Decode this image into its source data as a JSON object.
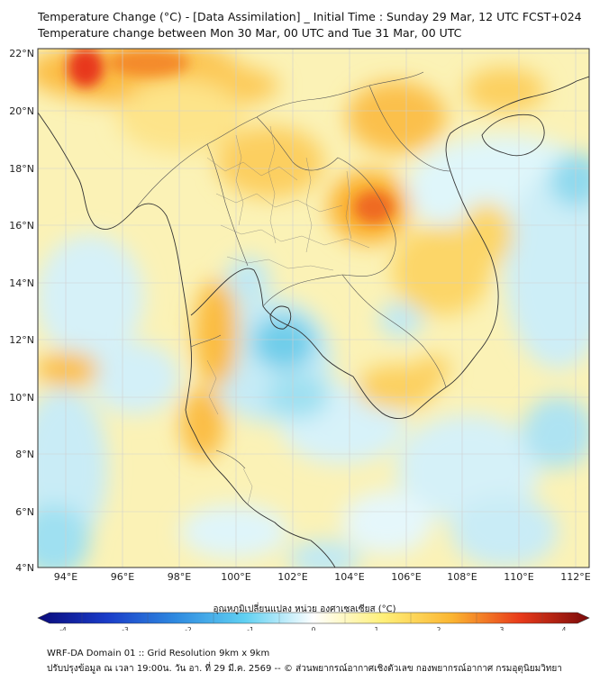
{
  "header": {
    "title_line1": "Temperature Change (°C) - [Data Assimilation] _ Initial Time : Sunday 29 Mar, 12 UTC FCST+024",
    "title_line2": "Temperature change between Mon 30 Mar, 00 UTC and Tue 31 Mar, 00 UTC"
  },
  "map": {
    "lon_range": [
      93,
      112.5
    ],
    "lat_range": [
      4,
      22.2
    ],
    "lon_ticks": [
      "94°E",
      "96°E",
      "98°E",
      "100°E",
      "102°E",
      "104°E",
      "106°E",
      "108°E",
      "110°E",
      "112°E"
    ],
    "lat_ticks": [
      "22°N",
      "20°N",
      "18°N",
      "16°N",
      "14°N",
      "12°N",
      "10°N",
      "8°N",
      "6°N",
      "4°N"
    ]
  },
  "colorbar": {
    "label": "อุณหภูมิเปลี่ยนแปลง หน่วย องศาเซลเซียส (°C)",
    "tick_labels": [
      "-4",
      "-3",
      "-2",
      "-1",
      "0",
      "1",
      "2",
      "3",
      "4"
    ],
    "colors": [
      "#0a0a7a",
      "#1a3cc8",
      "#2f8ae0",
      "#5fd0f2",
      "#ffffff",
      "#fff07a",
      "#fbb632",
      "#e83a1a",
      "#7a0a0a"
    ]
  },
  "footer": {
    "line1": "WRF-DA Domain 01 :: Grid Resolution 9km x 9km",
    "line2": "ปรับปรุงข้อมูล ณ เวลา 19:00น. วัน อา. ที่ 29 มี.ค. 2569 -- © ส่วนพยากรณ์อากาศเชิงตัวเลข กองพยากรณ์อากาศ กรมอุตุนิยมวิทยา"
  }
}
